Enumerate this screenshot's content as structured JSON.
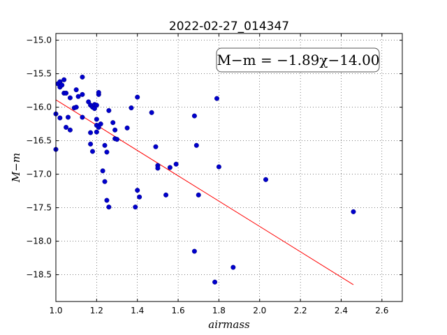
{
  "chart_data": {
    "type": "scatter",
    "title": "2022-02-27_014347",
    "xlabel": "airmass",
    "ylabel": "M−m",
    "xlim": [
      1.0,
      2.7
    ],
    "ylim": [
      -18.9,
      -14.9
    ],
    "invert_y": true,
    "grid": true,
    "x_ticks": [
      1.0,
      1.2,
      1.4,
      1.6,
      1.8,
      2.0,
      2.2,
      2.4,
      2.6
    ],
    "x_tick_labels": [
      "1.0",
      "1.2",
      "1.4",
      "1.6",
      "1.8",
      "2.0",
      "2.2",
      "2.4",
      "2.6"
    ],
    "y_ticks": [
      -15.0,
      -15.5,
      -16.0,
      -16.5,
      -17.0,
      -17.5,
      -18.0,
      -18.5
    ],
    "y_tick_labels": [
      "−15.0",
      "−15.5",
      "−16.0",
      "−16.5",
      "−17.0",
      "−17.5",
      "−18.0",
      "−18.5"
    ],
    "annotation": "M−m = −1.89χ−14.00",
    "annotation_position": "top-right",
    "fit": {
      "slope": -1.89,
      "intercept": -14.0,
      "x_range": [
        1.0,
        2.46
      ],
      "color": "#ff0000"
    },
    "point_color": "#0000cc",
    "points": [
      {
        "x": 1.0,
        "y": -16.1
      },
      {
        "x": 1.01,
        "y": -15.65
      },
      {
        "x": 1.02,
        "y": -15.62
      },
      {
        "x": 1.02,
        "y": -15.7
      },
      {
        "x": 1.03,
        "y": -15.67
      },
      {
        "x": 1.04,
        "y": -15.59
      },
      {
        "x": 1.04,
        "y": -15.79
      },
      {
        "x": 1.05,
        "y": -15.79
      },
      {
        "x": 1.07,
        "y": -15.86
      },
      {
        "x": 1.02,
        "y": -16.16
      },
      {
        "x": 1.05,
        "y": -16.3
      },
      {
        "x": 1.06,
        "y": -16.15
      },
      {
        "x": 1.07,
        "y": -16.34
      },
      {
        "x": 1.0,
        "y": -16.63
      },
      {
        "x": 1.09,
        "y": -16.01
      },
      {
        "x": 1.1,
        "y": -16.0
      },
      {
        "x": 1.1,
        "y": -15.74
      },
      {
        "x": 1.11,
        "y": -15.84
      },
      {
        "x": 1.13,
        "y": -15.81
      },
      {
        "x": 1.13,
        "y": -15.55
      },
      {
        "x": 1.13,
        "y": -16.15
      },
      {
        "x": 1.16,
        "y": -15.92
      },
      {
        "x": 1.17,
        "y": -15.97
      },
      {
        "x": 1.18,
        "y": -16.0
      },
      {
        "x": 1.19,
        "y": -15.96
      },
      {
        "x": 1.19,
        "y": -16.02
      },
      {
        "x": 1.2,
        "y": -15.97
      },
      {
        "x": 1.2,
        "y": -16.18
      },
      {
        "x": 1.21,
        "y": -15.81
      },
      {
        "x": 1.21,
        "y": -15.78
      },
      {
        "x": 1.17,
        "y": -16.38
      },
      {
        "x": 1.17,
        "y": -16.55
      },
      {
        "x": 1.18,
        "y": -16.66
      },
      {
        "x": 1.2,
        "y": -16.27
      },
      {
        "x": 1.2,
        "y": -16.37
      },
      {
        "x": 1.21,
        "y": -16.3
      },
      {
        "x": 1.22,
        "y": -16.25
      },
      {
        "x": 1.26,
        "y": -16.05
      },
      {
        "x": 1.28,
        "y": -16.23
      },
      {
        "x": 1.29,
        "y": -16.34
      },
      {
        "x": 1.29,
        "y": -16.47
      },
      {
        "x": 1.3,
        "y": -16.48
      },
      {
        "x": 1.24,
        "y": -16.57
      },
      {
        "x": 1.25,
        "y": -16.67
      },
      {
        "x": 1.23,
        "y": -16.95
      },
      {
        "x": 1.24,
        "y": -17.11
      },
      {
        "x": 1.25,
        "y": -17.39
      },
      {
        "x": 1.26,
        "y": -17.49
      },
      {
        "x": 1.35,
        "y": -16.31
      },
      {
        "x": 1.37,
        "y": -16.01
      },
      {
        "x": 1.4,
        "y": -15.85
      },
      {
        "x": 1.47,
        "y": -16.08
      },
      {
        "x": 1.49,
        "y": -16.59
      },
      {
        "x": 1.5,
        "y": -16.87
      },
      {
        "x": 1.5,
        "y": -16.91
      },
      {
        "x": 1.4,
        "y": -17.24
      },
      {
        "x": 1.41,
        "y": -17.34
      },
      {
        "x": 1.39,
        "y": -17.49
      },
      {
        "x": 1.54,
        "y": -17.31
      },
      {
        "x": 1.56,
        "y": -16.9
      },
      {
        "x": 1.59,
        "y": -16.85
      },
      {
        "x": 1.68,
        "y": -16.13
      },
      {
        "x": 1.69,
        "y": -16.57
      },
      {
        "x": 1.7,
        "y": -17.31
      },
      {
        "x": 1.68,
        "y": -18.15
      },
      {
        "x": 1.79,
        "y": -15.87
      },
      {
        "x": 1.8,
        "y": -16.89
      },
      {
        "x": 1.78,
        "y": -18.61
      },
      {
        "x": 1.87,
        "y": -18.39
      },
      {
        "x": 2.03,
        "y": -17.08
      },
      {
        "x": 2.46,
        "y": -17.56
      }
    ]
  }
}
